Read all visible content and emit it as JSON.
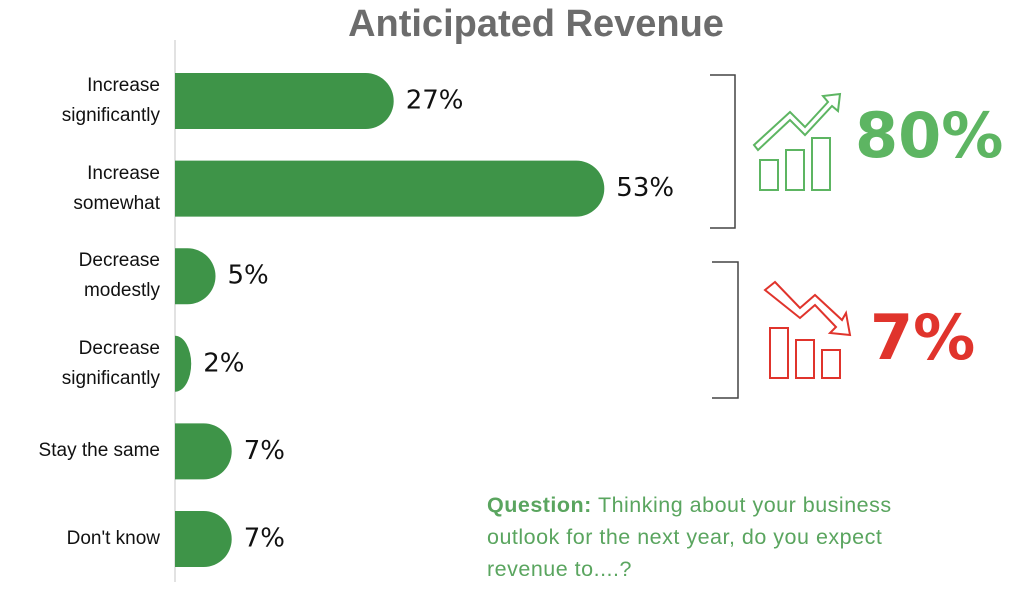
{
  "chart_data": {
    "type": "bar",
    "orientation": "horizontal",
    "title": "Anticipated Revenue",
    "categories": [
      "Increase significantly",
      "Increase somewhat",
      "Decrease modestly",
      "Decrease significantly",
      "Stay the same",
      "Don't know"
    ],
    "values": [
      27,
      53,
      5,
      2,
      7,
      7
    ],
    "value_labels": [
      "27%",
      "53%",
      "5%",
      "2%",
      "7%",
      "7%"
    ],
    "color": "#3e9448",
    "summaries": [
      {
        "label": "80%",
        "color": "#5db562"
      },
      {
        "label": "7%",
        "color": "#e0342c"
      }
    ],
    "question": {
      "lead": "Question:",
      "text": "Thinking about your business outlook for the next year, do you expect revenue to....?"
    }
  }
}
